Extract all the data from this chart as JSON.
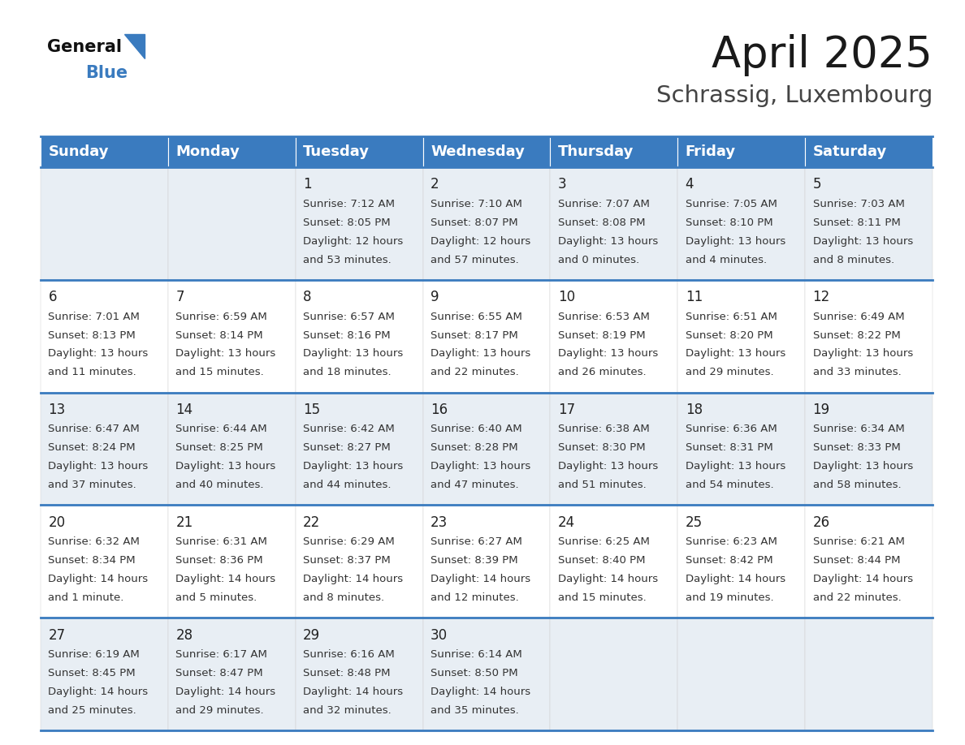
{
  "title": "April 2025",
  "subtitle": "Schrassig, Luxembourg",
  "header_bg_color": "#3a7bbf",
  "header_text_color": "#ffffff",
  "row_bg_even": "#ffffff",
  "row_bg_odd": "#e8eef4",
  "border_color": "#3a7bbf",
  "cell_text_color": "#333333",
  "day_num_color": "#222222",
  "days_of_week": [
    "Sunday",
    "Monday",
    "Tuesday",
    "Wednesday",
    "Thursday",
    "Friday",
    "Saturday"
  ],
  "calendar": [
    [
      null,
      null,
      {
        "day": 1,
        "sunrise": "7:12 AM",
        "sunset": "8:05 PM",
        "daylight": "12 hours",
        "daylight2": "and 53 minutes."
      },
      {
        "day": 2,
        "sunrise": "7:10 AM",
        "sunset": "8:07 PM",
        "daylight": "12 hours",
        "daylight2": "and 57 minutes."
      },
      {
        "day": 3,
        "sunrise": "7:07 AM",
        "sunset": "8:08 PM",
        "daylight": "13 hours",
        "daylight2": "and 0 minutes."
      },
      {
        "day": 4,
        "sunrise": "7:05 AM",
        "sunset": "8:10 PM",
        "daylight": "13 hours",
        "daylight2": "and 4 minutes."
      },
      {
        "day": 5,
        "sunrise": "7:03 AM",
        "sunset": "8:11 PM",
        "daylight": "13 hours",
        "daylight2": "and 8 minutes."
      }
    ],
    [
      {
        "day": 6,
        "sunrise": "7:01 AM",
        "sunset": "8:13 PM",
        "daylight": "13 hours",
        "daylight2": "and 11 minutes."
      },
      {
        "day": 7,
        "sunrise": "6:59 AM",
        "sunset": "8:14 PM",
        "daylight": "13 hours",
        "daylight2": "and 15 minutes."
      },
      {
        "day": 8,
        "sunrise": "6:57 AM",
        "sunset": "8:16 PM",
        "daylight": "13 hours",
        "daylight2": "and 18 minutes."
      },
      {
        "day": 9,
        "sunrise": "6:55 AM",
        "sunset": "8:17 PM",
        "daylight": "13 hours",
        "daylight2": "and 22 minutes."
      },
      {
        "day": 10,
        "sunrise": "6:53 AM",
        "sunset": "8:19 PM",
        "daylight": "13 hours",
        "daylight2": "and 26 minutes."
      },
      {
        "day": 11,
        "sunrise": "6:51 AM",
        "sunset": "8:20 PM",
        "daylight": "13 hours",
        "daylight2": "and 29 minutes."
      },
      {
        "day": 12,
        "sunrise": "6:49 AM",
        "sunset": "8:22 PM",
        "daylight": "13 hours",
        "daylight2": "and 33 minutes."
      }
    ],
    [
      {
        "day": 13,
        "sunrise": "6:47 AM",
        "sunset": "8:24 PM",
        "daylight": "13 hours",
        "daylight2": "and 37 minutes."
      },
      {
        "day": 14,
        "sunrise": "6:44 AM",
        "sunset": "8:25 PM",
        "daylight": "13 hours",
        "daylight2": "and 40 minutes."
      },
      {
        "day": 15,
        "sunrise": "6:42 AM",
        "sunset": "8:27 PM",
        "daylight": "13 hours",
        "daylight2": "and 44 minutes."
      },
      {
        "day": 16,
        "sunrise": "6:40 AM",
        "sunset": "8:28 PM",
        "daylight": "13 hours",
        "daylight2": "and 47 minutes."
      },
      {
        "day": 17,
        "sunrise": "6:38 AM",
        "sunset": "8:30 PM",
        "daylight": "13 hours",
        "daylight2": "and 51 minutes."
      },
      {
        "day": 18,
        "sunrise": "6:36 AM",
        "sunset": "8:31 PM",
        "daylight": "13 hours",
        "daylight2": "and 54 minutes."
      },
      {
        "day": 19,
        "sunrise": "6:34 AM",
        "sunset": "8:33 PM",
        "daylight": "13 hours",
        "daylight2": "and 58 minutes."
      }
    ],
    [
      {
        "day": 20,
        "sunrise": "6:32 AM",
        "sunset": "8:34 PM",
        "daylight": "14 hours",
        "daylight2": "and 1 minute."
      },
      {
        "day": 21,
        "sunrise": "6:31 AM",
        "sunset": "8:36 PM",
        "daylight": "14 hours",
        "daylight2": "and 5 minutes."
      },
      {
        "day": 22,
        "sunrise": "6:29 AM",
        "sunset": "8:37 PM",
        "daylight": "14 hours",
        "daylight2": "and 8 minutes."
      },
      {
        "day": 23,
        "sunrise": "6:27 AM",
        "sunset": "8:39 PM",
        "daylight": "14 hours",
        "daylight2": "and 12 minutes."
      },
      {
        "day": 24,
        "sunrise": "6:25 AM",
        "sunset": "8:40 PM",
        "daylight": "14 hours",
        "daylight2": "and 15 minutes."
      },
      {
        "day": 25,
        "sunrise": "6:23 AM",
        "sunset": "8:42 PM",
        "daylight": "14 hours",
        "daylight2": "and 19 minutes."
      },
      {
        "day": 26,
        "sunrise": "6:21 AM",
        "sunset": "8:44 PM",
        "daylight": "14 hours",
        "daylight2": "and 22 minutes."
      }
    ],
    [
      {
        "day": 27,
        "sunrise": "6:19 AM",
        "sunset": "8:45 PM",
        "daylight": "14 hours",
        "daylight2": "and 25 minutes."
      },
      {
        "day": 28,
        "sunrise": "6:17 AM",
        "sunset": "8:47 PM",
        "daylight": "14 hours",
        "daylight2": "and 29 minutes."
      },
      {
        "day": 29,
        "sunrise": "6:16 AM",
        "sunset": "8:48 PM",
        "daylight": "14 hours",
        "daylight2": "and 32 minutes."
      },
      {
        "day": 30,
        "sunrise": "6:14 AM",
        "sunset": "8:50 PM",
        "daylight": "14 hours",
        "daylight2": "and 35 minutes."
      },
      null,
      null,
      null
    ]
  ],
  "title_fontsize": 38,
  "subtitle_fontsize": 21,
  "header_fontsize": 13,
  "day_num_fontsize": 12,
  "cell_text_fontsize": 9.5
}
